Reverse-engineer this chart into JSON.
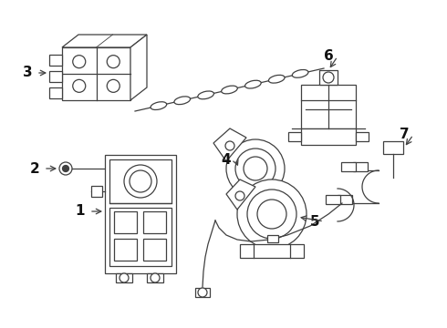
{
  "bg_color": "#ffffff",
  "line_color": "#404040",
  "label_color": "#111111",
  "figsize": [
    4.9,
    3.6
  ],
  "dpi": 100
}
